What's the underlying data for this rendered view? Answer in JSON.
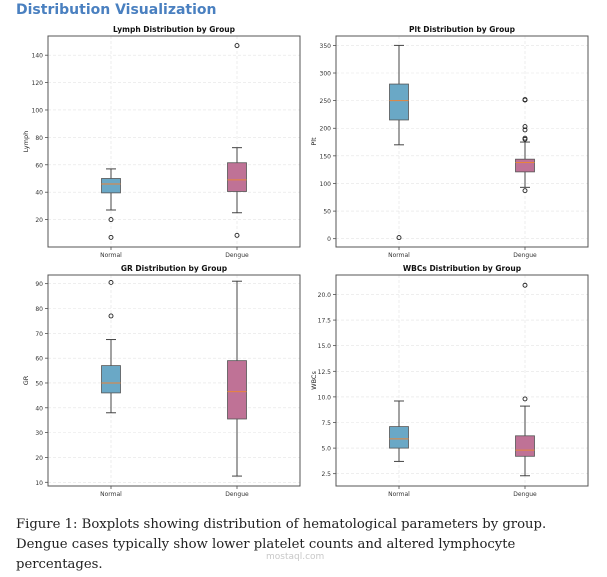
{
  "heading": "Distribution Visualization",
  "caption": "Figure 1: Boxplots showing distribution of hematological parameters by group. Dengue cases typically show lower platelet counts and altered lymphocyte percentages.",
  "watermark": "mostaql.com",
  "colors": {
    "normal": "#6aa8c6",
    "dengue": "#bf7296",
    "median": "#e8853a",
    "heading": "#4a80c0"
  },
  "chart_data": [
    {
      "type": "box",
      "title": "Lymph Distribution by Group",
      "ylabel": "Lymph",
      "categories": [
        "Normal",
        "Dengue"
      ],
      "ylim": [
        0,
        154
      ],
      "yticks": [
        20,
        40,
        60,
        80,
        100,
        120,
        140
      ],
      "tick_labels": [
        "20",
        "40",
        "60",
        "80",
        "100",
        "120",
        "140"
      ],
      "grid": true,
      "boxes": [
        {
          "whislo": 27,
          "q1": 39.5,
          "med": 46,
          "q3": 50,
          "whishi": 57,
          "fliers": [
            20,
            7
          ]
        },
        {
          "whislo": 25,
          "q1": 40.5,
          "med": 49,
          "q3": 61.5,
          "whishi": 72.5,
          "fliers": [
            147,
            8.5
          ]
        }
      ]
    },
    {
      "type": "box",
      "title": "Plt Distribution by Group",
      "ylabel": "Plt",
      "categories": [
        "Normal",
        "Dengue"
      ],
      "ylim": [
        -15,
        367
      ],
      "yticks": [
        0,
        50,
        100,
        150,
        200,
        250,
        300,
        350
      ],
      "tick_labels": [
        "0",
        "50",
        "100",
        "150",
        "200",
        "250",
        "300",
        "350"
      ],
      "grid": true,
      "boxes": [
        {
          "whislo": 170,
          "q1": 215,
          "med": 250,
          "q3": 280,
          "whishi": 350,
          "fliers": [
            2
          ]
        },
        {
          "whislo": 93,
          "q1": 121,
          "med": 138,
          "q3": 144,
          "whishi": 175,
          "fliers": [
            251,
            252,
            203,
            197,
            182,
            180,
            87
          ]
        }
      ]
    },
    {
      "type": "box",
      "title": "GR Distribution by Group",
      "ylabel": "GR",
      "categories": [
        "Normal",
        "Dengue"
      ],
      "ylim": [
        8.5,
        93.5
      ],
      "yticks": [
        10,
        20,
        30,
        40,
        50,
        60,
        70,
        80,
        90
      ],
      "tick_labels": [
        "10",
        "20",
        "30",
        "40",
        "50",
        "60",
        "70",
        "80",
        "90"
      ],
      "grid": true,
      "boxes": [
        {
          "whislo": 38,
          "q1": 46,
          "med": 50,
          "q3": 57,
          "whishi": 67.5,
          "fliers": [
            90.5,
            77
          ]
        },
        {
          "whislo": 12.5,
          "q1": 35.5,
          "med": 46.5,
          "q3": 59,
          "whishi": 91,
          "fliers": []
        }
      ]
    },
    {
      "type": "box",
      "title": "WBCs Distribution by Group",
      "ylabel": "WBCs",
      "categories": [
        "Normal",
        "Dengue"
      ],
      "ylim": [
        1.3,
        21.9
      ],
      "yticks": [
        2.5,
        5,
        7.5,
        10,
        12.5,
        15,
        17.5,
        20
      ],
      "tick_labels": [
        "2.5",
        "5.0",
        "7.5",
        "10.0",
        "12.5",
        "15.0",
        "17.5",
        "20.0"
      ],
      "grid": true,
      "boxes": [
        {
          "whislo": 3.7,
          "q1": 5.0,
          "med": 5.9,
          "q3": 7.1,
          "whishi": 9.6,
          "fliers": []
        },
        {
          "whislo": 2.3,
          "q1": 4.2,
          "med": 4.8,
          "q3": 6.2,
          "whishi": 9.1,
          "fliers": [
            20.9,
            9.8
          ]
        }
      ]
    }
  ]
}
